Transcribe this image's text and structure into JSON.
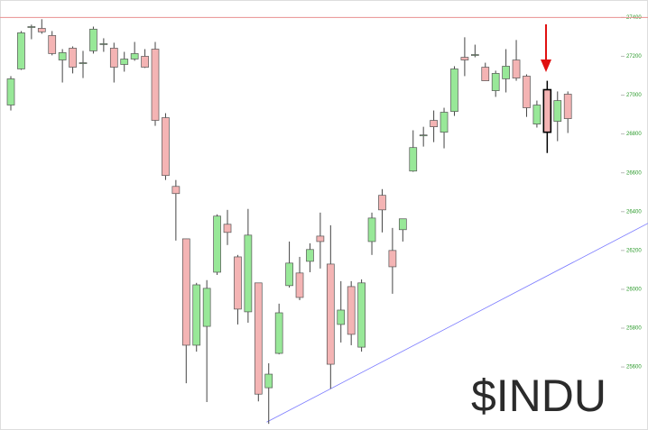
{
  "chart_data": {
    "type": "candlestick",
    "title": "$INDU",
    "ylim": [
      25280,
      27490
    ],
    "yticks": [
      25600,
      25800,
      26000,
      26200,
      26400,
      26600,
      26800,
      27000,
      27200,
      27400
    ],
    "xlim": [
      -1.05,
      61.77
    ],
    "up_color": "#98e898",
    "down_color": "#f4b4b4",
    "highlight_index": 52,
    "hline": {
      "value": 27400,
      "color": "#e89090"
    },
    "trendline": {
      "x": [
        24.8,
        61.77
      ],
      "values": [
        25316,
        26340
      ],
      "color": "#7a7aff"
    },
    "open": [
      26949,
      27135,
      27353,
      27344,
      27307,
      27181,
      27242,
      27167,
      27228,
      27265,
      27242,
      27158,
      27186,
      27200,
      27237,
      26884,
      26530,
      26260,
      25712,
      25809,
      26088,
      26335,
      26167,
      25884,
      26033,
      25493,
      25670,
      26019,
      26084,
      26144,
      26274,
      26130,
      25819,
      26014,
      25702,
      26246,
      26484,
      26200,
      26307,
      26609,
      26795,
      26870,
      26809,
      26916,
      27195,
      27209,
      27144,
      27023,
      27084,
      27181,
      27098,
      26851,
      27028,
      26865,
      27005
    ],
    "high": [
      27098,
      27330,
      27363,
      27391,
      27330,
      27237,
      27251,
      27228,
      27353,
      27293,
      27270,
      27223,
      27274,
      27237,
      27274,
      26907,
      26563,
      26260,
      26033,
      26047,
      26386,
      26409,
      26177,
      26414,
      26033,
      25619,
      25926,
      26246,
      26167,
      26237,
      26395,
      26330,
      26042,
      26042,
      26051,
      26395,
      26516,
      26316,
      26363,
      26819,
      26837,
      26921,
      26935,
      27149,
      27298,
      27260,
      27167,
      27126,
      27237,
      27284,
      27107,
      26972,
      27074,
      27019,
      27019
    ],
    "low": [
      26921,
      27130,
      27288,
      27316,
      27205,
      27065,
      27112,
      27088,
      27214,
      27223,
      27065,
      27121,
      27177,
      27140,
      26842,
      26563,
      26251,
      25516,
      25679,
      25419,
      26074,
      26228,
      25819,
      25828,
      25423,
      25307,
      25665,
      26009,
      25944,
      26088,
      26107,
      25488,
      25726,
      25712,
      25679,
      26177,
      26293,
      25977,
      26246,
      26605,
      26735,
      26758,
      26726,
      26893,
      27098,
      27195,
      27074,
      26991,
      27014,
      27074,
      26888,
      26833,
      26702,
      26763,
      26805
    ],
    "close": [
      27084,
      27321,
      27353,
      27326,
      27214,
      27219,
      27144,
      27167,
      27340,
      27265,
      27144,
      27186,
      27214,
      27144,
      26870,
      26586,
      26493,
      25712,
      26023,
      26005,
      26377,
      26293,
      25898,
      26279,
      25460,
      25563,
      25879,
      26135,
      25958,
      26205,
      26246,
      25614,
      25893,
      25768,
      26033,
      26367,
      26409,
      26116,
      26363,
      26730,
      26795,
      26837,
      26912,
      27135,
      27181,
      27209,
      27074,
      27112,
      27149,
      27088,
      26935,
      26949,
      26809,
      26972,
      26879
    ]
  }
}
